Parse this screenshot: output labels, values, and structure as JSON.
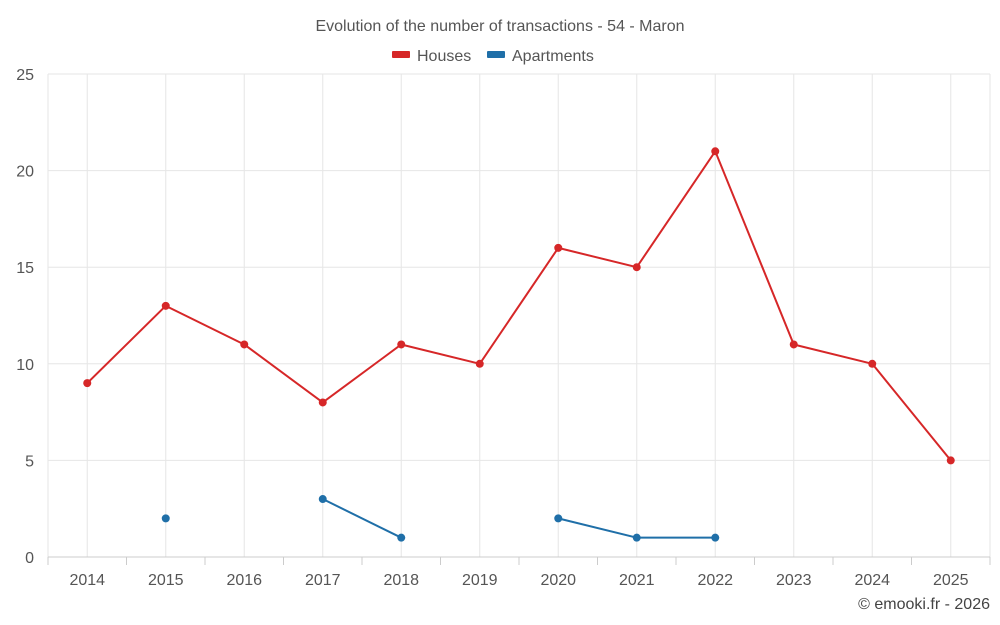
{
  "chart_data": {
    "type": "line",
    "title": "Evolution of the number of transactions - 54 - Maron",
    "categories": [
      "2014",
      "2015",
      "2016",
      "2017",
      "2018",
      "2019",
      "2020",
      "2021",
      "2022",
      "2023",
      "2024",
      "2025"
    ],
    "series": [
      {
        "name": "Houses",
        "color": "#d62728",
        "values": [
          9,
          13,
          11,
          8,
          11,
          10,
          16,
          15,
          21,
          11,
          10,
          5
        ]
      },
      {
        "name": "Apartments",
        "color": "#1f6fa8",
        "values": [
          null,
          2,
          null,
          3,
          1,
          null,
          2,
          1,
          1,
          null,
          null,
          null
        ]
      }
    ],
    "ylim": [
      0,
      25
    ],
    "yticks": [
      "0",
      "5",
      "10",
      "15",
      "20",
      "25"
    ],
    "xlabel": "",
    "ylabel": "",
    "grid": true,
    "legend_position": "top-center"
  },
  "credit": "© emooki.fr - 2026"
}
